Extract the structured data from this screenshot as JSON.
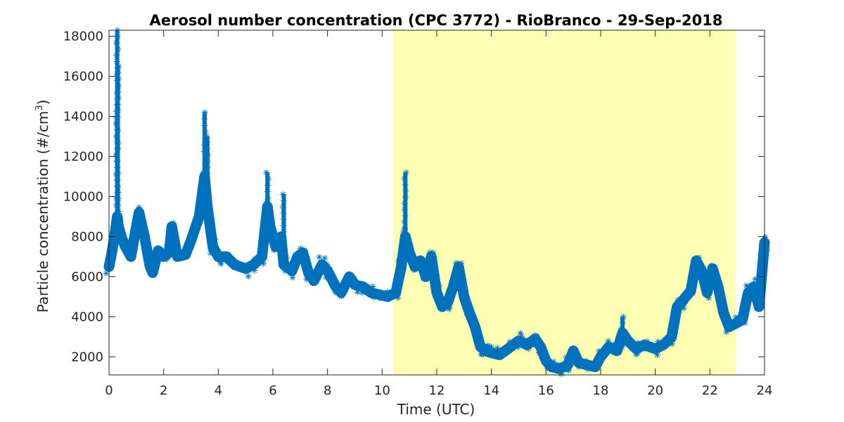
{
  "colors": {
    "series": "#0072bd",
    "daylight_band": "#ffffb4",
    "axis": "#262626",
    "background": "#ffffff"
  },
  "chart_data": {
    "type": "scatter",
    "marker": "asterisk",
    "title": "Aerosol number concentration (CPC 3772) - RioBranco - 29-Sep-2018",
    "xlabel": "Time (UTC)",
    "ylabel_main": "Particle concentration (#/cm",
    "ylabel_sup": "3",
    "ylabel_tail": ")",
    "xlim": [
      0,
      24
    ],
    "ylim": [
      1100,
      18300
    ],
    "xticks": [
      0,
      2,
      4,
      6,
      8,
      10,
      12,
      14,
      16,
      18,
      20,
      22,
      24
    ],
    "yticks": [
      2000,
      4000,
      6000,
      8000,
      10000,
      12000,
      14000,
      16000,
      18000
    ],
    "grid": false,
    "daylight_band": {
      "x_start": 10.4,
      "x_end": 22.95
    },
    "series": [
      {
        "x": [
          0.0,
          0.1,
          0.2,
          0.3,
          0.35,
          0.45,
          0.6,
          0.8,
          1.0,
          1.1,
          1.3,
          1.5,
          1.6,
          1.8,
          2.0,
          2.2,
          2.3,
          2.5,
          2.8,
          3.0,
          3.3,
          3.5,
          3.6,
          3.8,
          4.0,
          4.3,
          4.6,
          5.0,
          5.3,
          5.6,
          5.8,
          5.9,
          6.1,
          6.3,
          6.4,
          6.5,
          6.7,
          6.9,
          7.1,
          7.3,
          7.5,
          7.8,
          8.0,
          8.3,
          8.5,
          8.8,
          9.0,
          9.3,
          9.6,
          9.9,
          10.2,
          10.5,
          10.7,
          10.85,
          11.0,
          11.2,
          11.4,
          11.6,
          11.8,
          12.0,
          12.2,
          12.4,
          12.6,
          12.8,
          13.0,
          13.2,
          13.4,
          13.6,
          13.8,
          14.0,
          14.3,
          14.6,
          15.0,
          15.3,
          15.6,
          15.8,
          16.0,
          16.2,
          16.5,
          16.8,
          17.0,
          17.2,
          17.5,
          17.8,
          18.0,
          18.3,
          18.6,
          18.8,
          19.0,
          19.3,
          19.6,
          20.0,
          20.3,
          20.6,
          20.8,
          21.0,
          21.3,
          21.5,
          21.7,
          21.9,
          22.1,
          22.3,
          22.5,
          22.7,
          23.0,
          23.2,
          23.4,
          23.6,
          23.8,
          24.0
        ],
        "y": [
          6500,
          7200,
          8000,
          9000,
          8500,
          8000,
          7500,
          7000,
          8500,
          9200,
          8000,
          6500,
          6200,
          7300,
          7000,
          7200,
          8500,
          7000,
          7100,
          7800,
          9000,
          11000,
          9500,
          7500,
          7000,
          7000,
          6600,
          6400,
          6600,
          7000,
          9500,
          8500,
          7500,
          8000,
          6600,
          6500,
          6300,
          7000,
          7200,
          6200,
          5800,
          6600,
          6300,
          5500,
          5200,
          6000,
          5600,
          5500,
          5200,
          5100,
          5000,
          5200,
          6500,
          8000,
          7200,
          6500,
          6800,
          6000,
          7000,
          5200,
          4500,
          4700,
          5500,
          6500,
          5000,
          4200,
          3500,
          2500,
          2300,
          2200,
          2100,
          2400,
          2800,
          2600,
          2900,
          2500,
          1800,
          1500,
          1400,
          1600,
          2300,
          1700,
          1600,
          1500,
          2000,
          2500,
          2300,
          3200,
          2800,
          2400,
          2600,
          2400,
          2600,
          3000,
          4500,
          4800,
          5300,
          6800,
          6300,
          5200,
          6400,
          5500,
          4200,
          3500,
          3700,
          3900,
          5200,
          5500,
          4500,
          7700
        ]
      }
    ],
    "spikes": [
      {
        "x": 0.3,
        "y_from": 8000,
        "y_to": 18300
      },
      {
        "x": 0.32,
        "y_from": 8000,
        "y_to": 16500
      },
      {
        "x": 3.5,
        "y_from": 9000,
        "y_to": 14200
      },
      {
        "x": 3.6,
        "y_from": 9000,
        "y_to": 13000
      },
      {
        "x": 5.8,
        "y_from": 8000,
        "y_to": 11200
      },
      {
        "x": 6.4,
        "y_from": 7000,
        "y_to": 10100
      },
      {
        "x": 10.85,
        "y_from": 7500,
        "y_to": 11200
      },
      {
        "x": 18.8,
        "y_from": 2500,
        "y_to": 4000
      }
    ]
  }
}
